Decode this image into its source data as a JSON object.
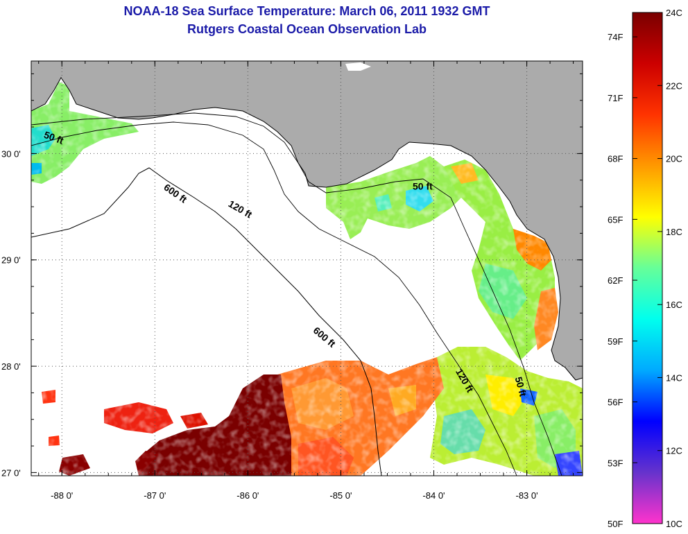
{
  "title": {
    "line1": "NOAA-18 Sea Surface Temperature:  March 06, 2011 1932 GMT",
    "line2": "Rutgers Coastal Ocean Observation Lab"
  },
  "map": {
    "lon_range": [
      -88.33,
      -82.4
    ],
    "lat_range": [
      26.97,
      30.87
    ],
    "x_ticks": [
      {
        "value": -88,
        "label": "-88 0'"
      },
      {
        "value": -87,
        "label": "-87 0'"
      },
      {
        "value": -86,
        "label": "-86 0'"
      },
      {
        "value": -85,
        "label": "-85 0'"
      },
      {
        "value": -84,
        "label": "-84 0'"
      },
      {
        "value": -83,
        "label": "-83 0'"
      }
    ],
    "y_ticks": [
      {
        "value": 27,
        "label": "27 0'"
      },
      {
        "value": 28,
        "label": "28 0'"
      },
      {
        "value": 29,
        "label": "29 0'"
      },
      {
        "value": 30,
        "label": "30 0'"
      }
    ],
    "grid": "dotted",
    "land_color": "#ababab",
    "contour_labels": [
      {
        "text": "50 ft",
        "lon": -88.1,
        "lat": 30.12
      },
      {
        "text": "600 ft",
        "lon": -86.8,
        "lat": 29.6
      },
      {
        "text": "120 ft",
        "lon": -86.1,
        "lat": 29.45
      },
      {
        "text": "50 ft",
        "lon": -84.12,
        "lat": 29.66
      },
      {
        "text": "600 ft",
        "lon": -85.2,
        "lat": 28.25
      },
      {
        "text": "120 ft",
        "lon": -83.7,
        "lat": 27.85
      },
      {
        "text": "50 ft",
        "lon": -83.1,
        "lat": 27.8
      }
    ]
  },
  "colorbar": {
    "celsius": [
      {
        "value": 24,
        "label": "24C"
      },
      {
        "value": 22,
        "label": "22C"
      },
      {
        "value": 20,
        "label": "20C"
      },
      {
        "value": 18,
        "label": "18C"
      },
      {
        "value": 16,
        "label": "16C"
      },
      {
        "value": 14,
        "label": "14C"
      },
      {
        "value": 12,
        "label": "12C"
      },
      {
        "value": 10,
        "label": "10C"
      }
    ],
    "fahrenheit": [
      {
        "value": 74,
        "label": "74F"
      },
      {
        "value": 71,
        "label": "71F"
      },
      {
        "value": 68,
        "label": "68F"
      },
      {
        "value": 65,
        "label": "65F"
      },
      {
        "value": 62,
        "label": "62F"
      },
      {
        "value": 59,
        "label": "59F"
      },
      {
        "value": 56,
        "label": "56F"
      },
      {
        "value": 53,
        "label": "53F"
      },
      {
        "value": 50,
        "label": "50F"
      }
    ],
    "range_c": [
      10,
      24
    ],
    "color_stops": [
      "#ff33cc",
      "#6633cc",
      "#0000ff",
      "#00aaff",
      "#00ffee",
      "#66ff99",
      "#ffff00",
      "#ff9900",
      "#ff3300",
      "#cc0000",
      "#7a0000"
    ]
  }
}
